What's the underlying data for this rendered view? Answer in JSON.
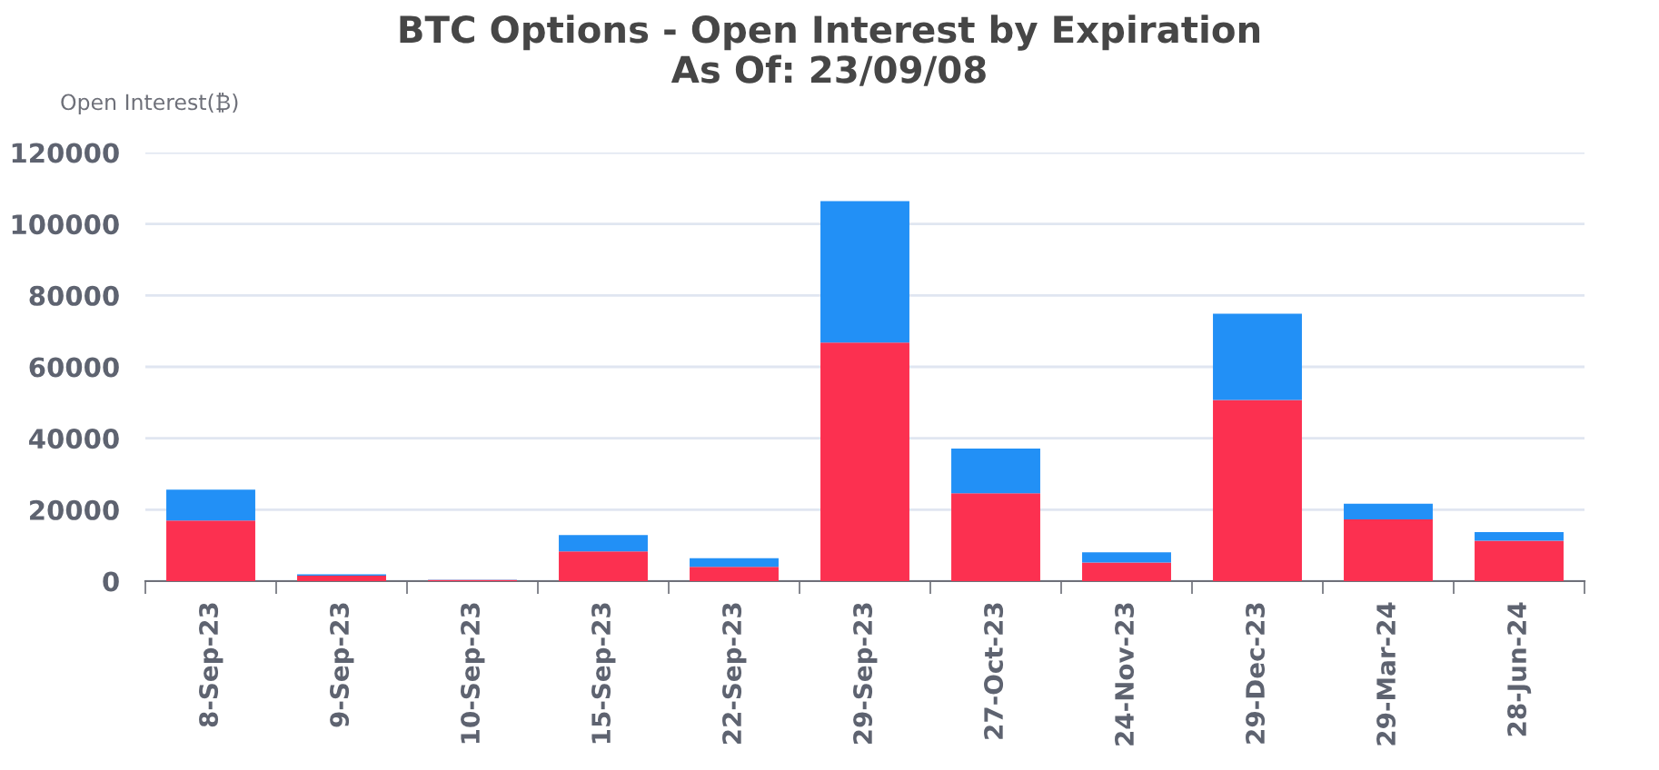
{
  "chart_data": {
    "type": "bar",
    "title": "BTC Options - Open Interest by Expiration",
    "subtitle": "As Of: 23/09/08",
    "ylabel": "Open Interest(₿)",
    "categories": [
      "8-Sep-23",
      "9-Sep-23",
      "10-Sep-23",
      "15-Sep-23",
      "22-Sep-23",
      "29-Sep-23",
      "27-Oct-23",
      "24-Nov-23",
      "29-Dec-23",
      "29-Mar-24",
      "28-Jun-24"
    ],
    "stacked": true,
    "series": [
      {
        "color": "#fc3050",
        "values": [
          17000,
          1500,
          300,
          8300,
          4000,
          66800,
          24600,
          5200,
          50700,
          17300,
          11300
        ]
      },
      {
        "color": "#2290f6",
        "values": [
          8600,
          400,
          100,
          4600,
          2400,
          39600,
          12500,
          2900,
          24200,
          4400,
          2400
        ]
      }
    ],
    "ylim": [
      0,
      120000
    ],
    "yticks": [
      0,
      20000,
      40000,
      60000,
      80000,
      100000,
      120000
    ],
    "grid": "y"
  }
}
